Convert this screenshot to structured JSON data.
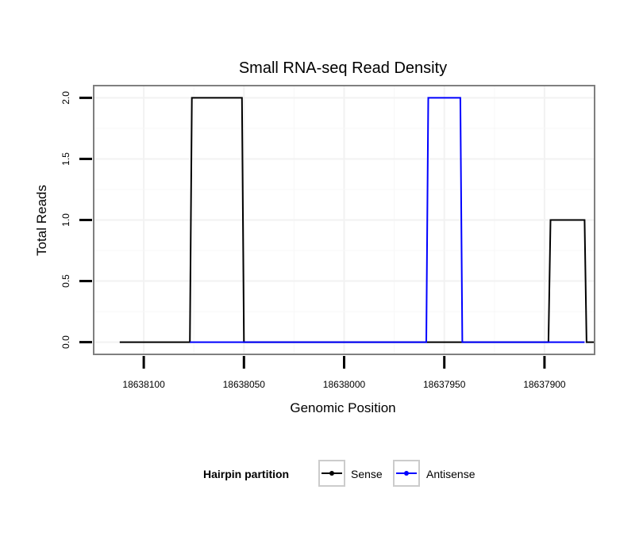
{
  "chart_data": {
    "type": "line",
    "title": "Small RNA-seq Read Density",
    "xlabel": "Genomic Position",
    "ylabel": "Total Reads",
    "x_reversed": true,
    "xlim": [
      18638125,
      18637875
    ],
    "ylim": [
      -0.1,
      2.1
    ],
    "x_ticks": [
      18638100,
      18638050,
      18638000,
      18637950,
      18637900
    ],
    "x_tick_labels": [
      "18638100",
      "18638050",
      "18638000",
      "18637950",
      "18637900"
    ],
    "y_ticks": [
      0,
      0.5,
      1,
      1.5,
      2
    ],
    "y_tick_labels": [
      "0.0",
      "0.5",
      "1.0",
      "1.5",
      "2.0"
    ],
    "grid": true,
    "legend": {
      "title": "Hairpin partition",
      "position": "bottom"
    },
    "series": [
      {
        "name": "Sense",
        "color": "#000000",
        "x": [
          18638112,
          18638077,
          18638076,
          18638051,
          18638050,
          18637898,
          18637897,
          18637880,
          18637879,
          18637875
        ],
        "y": [
          0,
          0,
          2,
          2,
          0,
          0,
          1,
          1,
          0,
          0
        ]
      },
      {
        "name": "Antisense",
        "color": "#0000ff",
        "x": [
          18638077,
          18637959,
          18637958,
          18637942,
          18637941,
          18637897,
          18637897,
          18637880
        ],
        "y": [
          0,
          0,
          2,
          2,
          0,
          0,
          0,
          0
        ]
      }
    ]
  }
}
